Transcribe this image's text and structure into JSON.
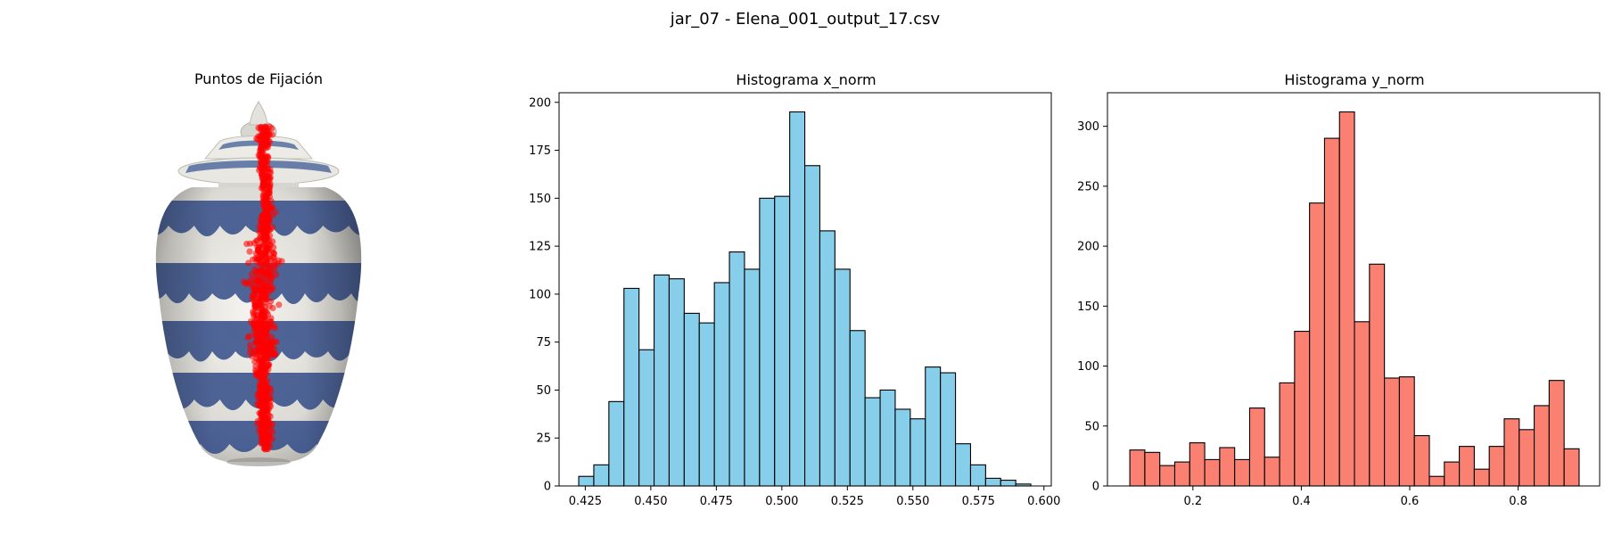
{
  "figure": {
    "suptitle": "jar_07 - Elena_001_output_17.csv"
  },
  "image_panel": {
    "title": "Puntos de Fijación",
    "image": "porcelain-ginger-jar-blue-white",
    "marker_color": "#ff0000"
  },
  "chart_data": [
    {
      "type": "bar",
      "title": "Histograma x_norm",
      "xlabel": "",
      "ylabel": "",
      "bar_color": "#87ceeb",
      "edge_color": "#000000",
      "bin_start": 0.4225,
      "bin_width": 0.00575,
      "values": [
        5,
        11,
        44,
        103,
        71,
        110,
        108,
        90,
        85,
        106,
        122,
        113,
        150,
        151,
        195,
        167,
        133,
        113,
        81,
        46,
        50,
        40,
        35,
        62,
        59,
        22,
        11,
        4,
        3,
        1
      ],
      "xlim": [
        0.415,
        0.6028
      ],
      "ylim": [
        0,
        205
      ],
      "xticks": [
        0.425,
        0.45,
        0.475,
        0.5,
        0.525,
        0.55,
        0.575,
        0.6
      ],
      "xtick_labels": [
        "0.425",
        "0.450",
        "0.475",
        "0.500",
        "0.525",
        "0.550",
        "0.575",
        "0.600"
      ],
      "yticks": [
        0,
        25,
        50,
        75,
        100,
        125,
        150,
        175,
        200
      ],
      "ytick_labels": [
        "0",
        "25",
        "50",
        "75",
        "100",
        "125",
        "150",
        "175",
        "200"
      ]
    },
    {
      "type": "bar",
      "title": "Histograma y_norm",
      "xlabel": "",
      "ylabel": "",
      "bar_color": "#fa8072",
      "edge_color": "#000000",
      "bin_start": 0.0836,
      "bin_width": 0.02763,
      "values": [
        30,
        28,
        17,
        20,
        36,
        22,
        32,
        22,
        65,
        24,
        86,
        129,
        236,
        290,
        312,
        137,
        185,
        90,
        91,
        42,
        8,
        20,
        33,
        14,
        33,
        56,
        47,
        67,
        88,
        31
      ],
      "xlim": [
        0.0423,
        0.9504
      ],
      "ylim": [
        0,
        328
      ],
      "xticks": [
        0.2,
        0.4,
        0.6,
        0.8
      ],
      "xtick_labels": [
        "0.2",
        "0.4",
        "0.6",
        "0.8"
      ],
      "yticks": [
        0,
        50,
        100,
        150,
        200,
        250,
        300
      ],
      "ytick_labels": [
        "0",
        "50",
        "100",
        "150",
        "200",
        "250",
        "300"
      ]
    }
  ]
}
